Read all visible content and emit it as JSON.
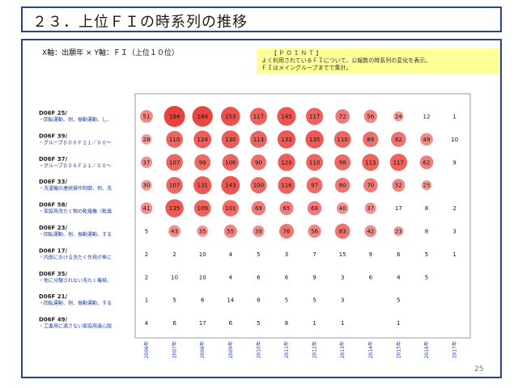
{
  "page": {
    "title": "２３．上位ＦＩの時系列の推移",
    "axis_description": "X軸：出願年 × Y軸：ＦＩ（上位１０位）",
    "point_title": "【 Ｐ Ｏ Ｉ Ｎ Ｔ 】",
    "point_lines": [
      "よく利用されているＦＩについて、公報数の時系列の変化を表示。",
      "ＦＩはメイングループまでで集計。"
    ],
    "page_number": "25"
  },
  "chart_data": {
    "type": "bubble-matrix",
    "x": [
      "2006年",
      "2007年",
      "2008年",
      "2009年",
      "2010年",
      "2011年",
      "2012年",
      "2013年",
      "2014年",
      "2015年",
      "2016年",
      "2017年"
    ],
    "rows": [
      {
        "code": "D06F 25/",
        "desc": "・回転運動、例．振動運動、し、",
        "values": [
          51,
          194,
          184,
          153,
          117,
          145,
          117,
          72,
          56,
          24,
          12,
          1
        ]
      },
      {
        "code": "D06F 39/",
        "desc": "・グループＤ０６Ｆ２１／００～",
        "values": [
          28,
          110,
          124,
          130,
          113,
          133,
          135,
          110,
          89,
          82,
          49,
          10
        ]
      },
      {
        "code": "D06F 37/",
        "desc": "・グループＤ０６Ｆ２１／００～",
        "values": [
          37,
          107,
          99,
          106,
          90,
          120,
          110,
          98,
          113,
          117,
          62,
          9
        ]
      },
      {
        "code": "D06F 33/",
        "desc": "・洗濯機の連続操作制御．例．洗",
        "values": [
          30,
          107,
          131,
          143,
          100,
          116,
          97,
          80,
          70,
          52,
          25,
          null
        ]
      },
      {
        "code": "D06F 58/",
        "desc": "・家庭用洗たく物の乾燥機（乾燥",
        "values": [
          41,
          135,
          109,
          101,
          69,
          65,
          68,
          40,
          37,
          17,
          8,
          2
        ]
      },
      {
        "code": "D06F 23/",
        "desc": "・回転運動、例．振動運動、する",
        "values": [
          5,
          43,
          35,
          55,
          39,
          76,
          56,
          83,
          42,
          23,
          8,
          3
        ]
      },
      {
        "code": "D06F 17/",
        "desc": "・内部における洗たく作用が単に",
        "values": [
          2,
          2,
          10,
          4,
          5,
          3,
          7,
          15,
          9,
          6,
          5,
          1
        ]
      },
      {
        "code": "D06F 35/",
        "desc": "・他に分類されない洗たく機械．",
        "values": [
          2,
          10,
          10,
          4,
          6,
          6,
          9,
          3,
          6,
          4,
          5,
          null
        ]
      },
      {
        "code": "D06F 21/",
        "desc": "・回転運動、例．振動運動、する",
        "values": [
          1,
          5,
          6,
          14,
          8,
          5,
          5,
          3,
          null,
          5,
          null,
          null
        ]
      },
      {
        "code": "D06F 49/",
        "desc": "・工業用に適さない家庭用遠心脱",
        "values": [
          4,
          6,
          17,
          6,
          5,
          8,
          1,
          1,
          null,
          1,
          null,
          null
        ]
      }
    ],
    "max_value": 194,
    "colors": {
      "high": "#e8423c",
      "low": "#f9d0d0",
      "plot_border": "#999999",
      "code_text": "#222222",
      "desc_text": "#1a3ea8"
    }
  }
}
